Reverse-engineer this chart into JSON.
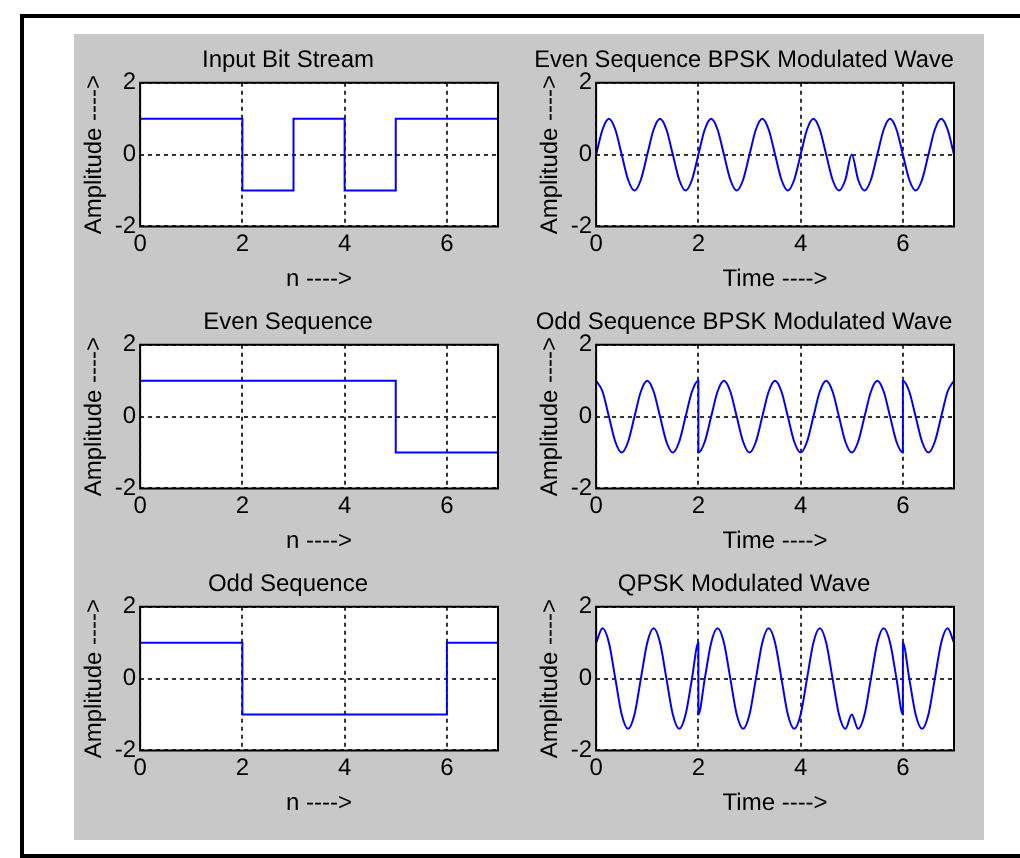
{
  "chart_data": [
    {
      "type": "step",
      "title": "Input Bit Stream",
      "xlabel": "n ---->",
      "ylabel": "Amplitude ---->",
      "x": [
        0,
        2,
        3,
        4,
        5,
        7
      ],
      "series": [
        {
          "color": "#0000ff",
          "values": [
            1,
            -1,
            1,
            -1,
            1,
            1
          ]
        }
      ],
      "xlim": [
        0,
        7
      ],
      "xticks": [
        0,
        2,
        4,
        6
      ],
      "ylim": [
        -2,
        2
      ],
      "yticks": [
        -2,
        0,
        2
      ],
      "grid": true
    },
    {
      "type": "line",
      "title": "Even Sequence BPSK Modulated Wave",
      "xlabel": "Time ---->",
      "ylabel": "Amplitude ---->",
      "x": [
        0,
        0.125,
        0.25,
        0.375,
        0.5,
        0.625,
        0.75,
        0.875,
        1,
        1.125,
        1.25,
        1.375,
        1.5,
        1.625,
        1.75,
        1.875,
        2,
        2.125,
        2.25,
        2.375,
        2.5,
        2.625,
        2.75,
        2.875,
        3,
        3.125,
        3.25,
        3.375,
        3.5,
        3.625,
        3.75,
        3.875,
        4,
        4.125,
        4.25,
        4.375,
        4.5,
        4.625,
        4.75,
        4.875,
        5,
        5.125,
        5.25,
        5.375,
        5.5,
        5.625,
        5.75,
        5.875,
        6,
        6.125,
        6.25,
        6.375,
        6.5,
        6.625,
        6.75,
        6.875,
        7
      ],
      "series": [
        {
          "color": "#0000ff",
          "values": [
            0,
            0.7,
            1,
            0.7,
            0,
            -0.7,
            -1,
            -0.7,
            0,
            0.7,
            1,
            0.7,
            0,
            -0.7,
            -1,
            -0.7,
            0,
            0.7,
            1,
            0.7,
            0,
            -0.7,
            -1,
            -0.7,
            0,
            0.7,
            1,
            0.7,
            0,
            -0.7,
            -1,
            -0.7,
            0,
            0.7,
            1,
            0.7,
            0,
            -0.7,
            -1,
            -0.7,
            0,
            -0.7,
            -1,
            -0.7,
            0,
            0.7,
            1,
            0.7,
            0,
            -0.7,
            -1,
            -0.7,
            0,
            0.7,
            1,
            0.7,
            0
          ]
        }
      ],
      "xlim": [
        0,
        7
      ],
      "xticks": [
        0,
        2,
        4,
        6
      ],
      "ylim": [
        -2,
        2
      ],
      "yticks": [
        -2,
        0,
        2
      ],
      "grid": true
    },
    {
      "type": "step",
      "title": "Even Sequence",
      "xlabel": "n ---->",
      "ylabel": "Amplitude ---->",
      "x": [
        0,
        5,
        7
      ],
      "series": [
        {
          "color": "#0000ff",
          "values": [
            1,
            -1,
            -1
          ]
        }
      ],
      "xlim": [
        0,
        7
      ],
      "xticks": [
        0,
        2,
        4,
        6
      ],
      "ylim": [
        -2,
        2
      ],
      "yticks": [
        -2,
        0,
        2
      ],
      "grid": true
    },
    {
      "type": "line",
      "title": "Odd Sequence BPSK Modulated Wave",
      "xlabel": "Time ---->",
      "ylabel": "Amplitude ---->",
      "x": [
        0,
        0.125,
        0.25,
        0.375,
        0.5,
        0.625,
        0.75,
        0.875,
        1,
        1.125,
        1.25,
        1.375,
        1.5,
        1.625,
        1.75,
        1.875,
        2,
        2,
        2.125,
        2.25,
        2.375,
        2.5,
        2.625,
        2.75,
        2.875,
        3,
        3.125,
        3.25,
        3.375,
        3.5,
        3.625,
        3.75,
        3.875,
        4,
        4.125,
        4.25,
        4.375,
        4.5,
        4.625,
        4.75,
        4.875,
        5,
        5.125,
        5.25,
        5.375,
        5.5,
        5.625,
        5.75,
        5.875,
        6,
        6,
        6.125,
        6.25,
        6.375,
        6.5,
        6.625,
        6.75,
        6.875,
        7
      ],
      "series": [
        {
          "color": "#0000ff",
          "values": [
            1,
            0.7,
            0,
            -0.7,
            -1,
            -0.7,
            0,
            0.7,
            1,
            0.7,
            0,
            -0.7,
            -1,
            -0.7,
            0,
            0.7,
            1,
            -1,
            -0.7,
            0,
            0.7,
            1,
            0.7,
            0,
            -0.7,
            -1,
            -0.7,
            0,
            0.7,
            1,
            0.7,
            0,
            -0.7,
            -1,
            -0.7,
            0,
            0.7,
            1,
            0.7,
            0,
            -0.7,
            -1,
            -0.7,
            0,
            0.7,
            1,
            0.7,
            0,
            -0.7,
            -1,
            1,
            0.7,
            0,
            -0.7,
            -1,
            -0.7,
            0,
            0.7,
            1
          ]
        }
      ],
      "xlim": [
        0,
        7
      ],
      "xticks": [
        0,
        2,
        4,
        6
      ],
      "ylim": [
        -2,
        2
      ],
      "yticks": [
        -2,
        0,
        2
      ],
      "grid": true
    },
    {
      "type": "step",
      "title": "Odd Sequence",
      "xlabel": "n ---->",
      "ylabel": "Amplitude ---->",
      "x": [
        0,
        2,
        6,
        7
      ],
      "series": [
        {
          "color": "#0000ff",
          "values": [
            1,
            -1,
            1,
            1
          ]
        }
      ],
      "xlim": [
        0,
        7
      ],
      "xticks": [
        0,
        2,
        4,
        6
      ],
      "ylim": [
        -2,
        2
      ],
      "yticks": [
        -2,
        0,
        2
      ],
      "grid": true
    },
    {
      "type": "line",
      "title": "QPSK Modulated Wave",
      "xlabel": "Time ---->",
      "ylabel": "Amplitude ---->",
      "x": [
        0,
        0.125,
        0.25,
        0.375,
        0.5,
        0.625,
        0.75,
        0.875,
        1,
        1.125,
        1.25,
        1.375,
        1.5,
        1.625,
        1.75,
        1.875,
        2,
        2,
        2.125,
        2.25,
        2.375,
        2.5,
        2.625,
        2.75,
        2.875,
        3,
        3.125,
        3.25,
        3.375,
        3.5,
        3.625,
        3.75,
        3.875,
        4,
        4.125,
        4.25,
        4.375,
        4.5,
        4.625,
        4.75,
        4.875,
        5,
        5.125,
        5.25,
        5.375,
        5.5,
        5.625,
        5.75,
        5.875,
        6,
        6,
        6.125,
        6.25,
        6.375,
        6.5,
        6.625,
        6.75,
        6.875,
        7
      ],
      "series": [
        {
          "color": "#0000ff",
          "values": [
            1,
            1.4,
            1,
            0,
            -1,
            -1.4,
            -1,
            0,
            1,
            1.4,
            1,
            0,
            -1,
            -1.4,
            -1,
            0,
            1,
            -1,
            0,
            1,
            1.4,
            1,
            0,
            -1,
            -1.4,
            -1,
            0,
            1,
            1.4,
            1,
            0,
            -1,
            -1.4,
            -1,
            0,
            1,
            1.4,
            1,
            0,
            -1,
            -1.4,
            -1,
            -1.4,
            -1,
            0,
            1,
            1.4,
            1,
            0,
            -1,
            1,
            0,
            -1,
            -1.4,
            -1,
            0,
            1,
            1.4,
            1
          ]
        }
      ],
      "xlim": [
        0,
        7
      ],
      "xticks": [
        0,
        2,
        4,
        6
      ],
      "ylim": [
        -2,
        2
      ],
      "yticks": [
        -2,
        0,
        2
      ],
      "grid": true
    }
  ]
}
